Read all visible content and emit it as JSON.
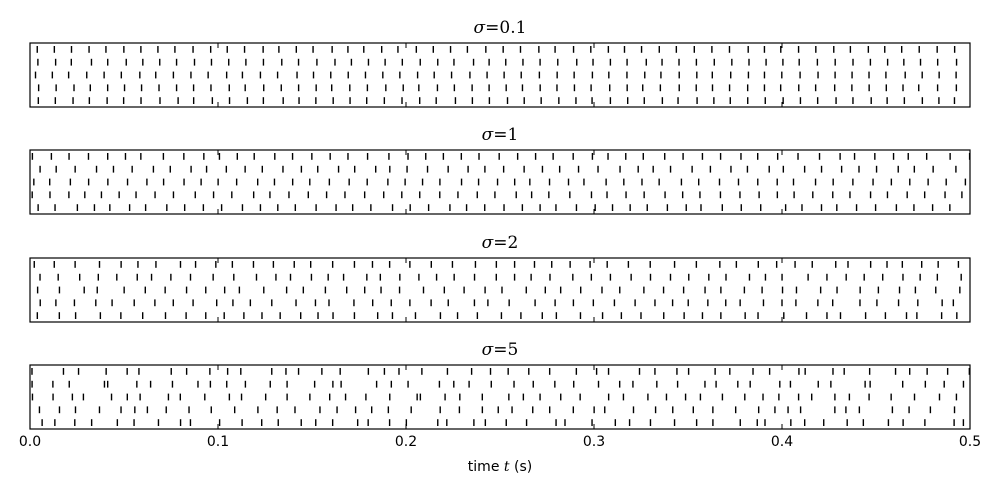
{
  "chart_data": {
    "type": "raster",
    "xlabel_prefix": "time ",
    "xlabel_var": "t",
    "xlabel_suffix": " (s)",
    "xlim": [
      0.0,
      0.5
    ],
    "xticks": [
      "0.0",
      "0.1",
      "0.2",
      "0.3",
      "0.4",
      "0.5"
    ],
    "trials_per_panel": 5,
    "panels": [
      {
        "sigma_symbol": "σ",
        "sigma_eq": "=0.1",
        "sigma": 0.1
      },
      {
        "sigma_symbol": "σ",
        "sigma_eq": "=1",
        "sigma": 1
      },
      {
        "sigma_symbol": "σ",
        "sigma_eq": "=2",
        "sigma": 2
      },
      {
        "sigma_symbol": "σ",
        "sigma_eq": "=5",
        "sigma": 5
      }
    ],
    "spike_color": "#000000",
    "grid": false
  }
}
